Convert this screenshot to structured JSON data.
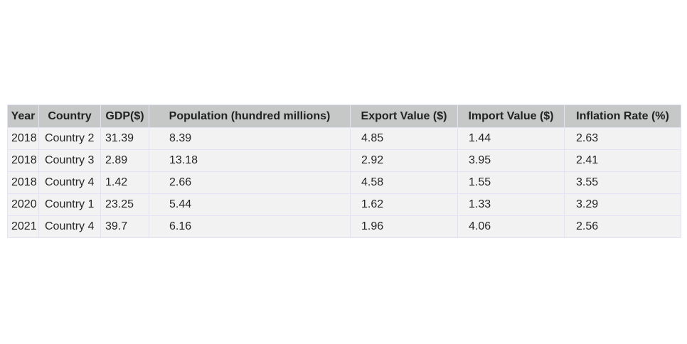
{
  "chart_data": {
    "type": "table",
    "columns": [
      "Year",
      "Country",
      "GDP($)",
      "Population (hundred millions)",
      "Export Value ($)",
      "Import Value ($)",
      "Inflation Rate (%)"
    ],
    "rows": [
      [
        "2018",
        "Country 2",
        "31.39",
        "8.39",
        "4.85",
        "1.44",
        "2.63"
      ],
      [
        "2018",
        "Country 3",
        "2.89",
        "13.18",
        "2.92",
        "3.95",
        "2.41"
      ],
      [
        "2018",
        "Country 4",
        "1.42",
        "2.66",
        "4.58",
        "1.55",
        "3.55"
      ],
      [
        "2020",
        "Country 1",
        "23.25",
        "5.44",
        "1.62",
        "1.33",
        "3.29"
      ],
      [
        "2021",
        "Country 4",
        "39.7",
        "6.16",
        "1.96",
        "4.06",
        "2.56"
      ]
    ],
    "colors": {
      "header_bg": "#c6c8c8",
      "cell_bg": "#f2f2f2",
      "border": "#e3e1f5"
    }
  }
}
